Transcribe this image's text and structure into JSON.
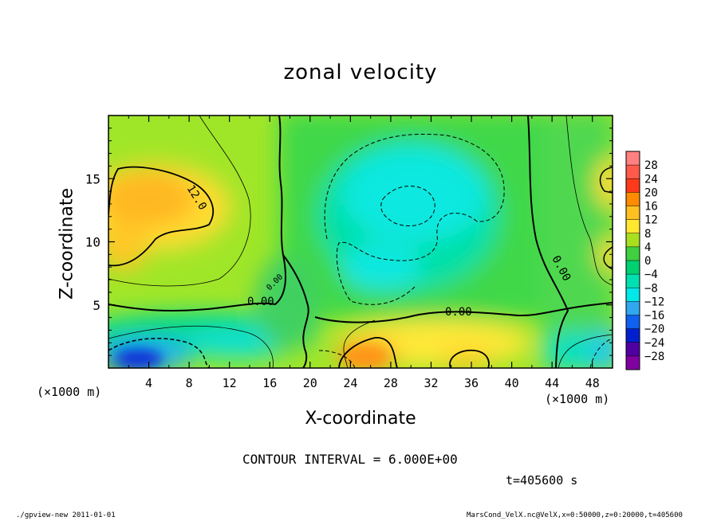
{
  "chart_data": {
    "type": "heatmap",
    "title": "zonal velocity",
    "xlabel": "X-coordinate",
    "ylabel": "Z-coordinate",
    "x_unit": "(×1000 m)",
    "y_unit": "(×1000 m)",
    "xlim": [
      0,
      50
    ],
    "ylim": [
      0,
      20
    ],
    "x_ticks": [
      "4",
      "8",
      "12",
      "16",
      "20",
      "24",
      "28",
      "32",
      "36",
      "40",
      "44",
      "48"
    ],
    "y_ticks": [
      "5",
      "10",
      "15"
    ],
    "colorbar": {
      "levels": [
        "28",
        "24",
        "20",
        "16",
        "12",
        "8",
        "4",
        "0",
        "−4",
        "−8",
        "−12",
        "−16",
        "−20",
        "−24",
        "−28"
      ],
      "colors": [
        "#ff8080",
        "#ff5a4a",
        "#ff3a1a",
        "#ff8c00",
        "#ffc020",
        "#ffe830",
        "#a8e020",
        "#40d040",
        "#00d070",
        "#00e0b0",
        "#00e8e8",
        "#30a8f0",
        "#1060f0",
        "#0020d0",
        "#5000a0",
        "#8000a0"
      ]
    },
    "contour_labels": [
      "12.0",
      "0.00",
      "0.00",
      "0.00",
      "0.00"
    ],
    "contour_interval": "CONTOUR INTERVAL = 6.000E+00",
    "time": "t=405600 s"
  },
  "footer": {
    "left": "./gpview-new   2011-01-01",
    "right": "MarsCond_VelX.nc@VelX,x=0:50000,z=0:20000,t=405600"
  }
}
